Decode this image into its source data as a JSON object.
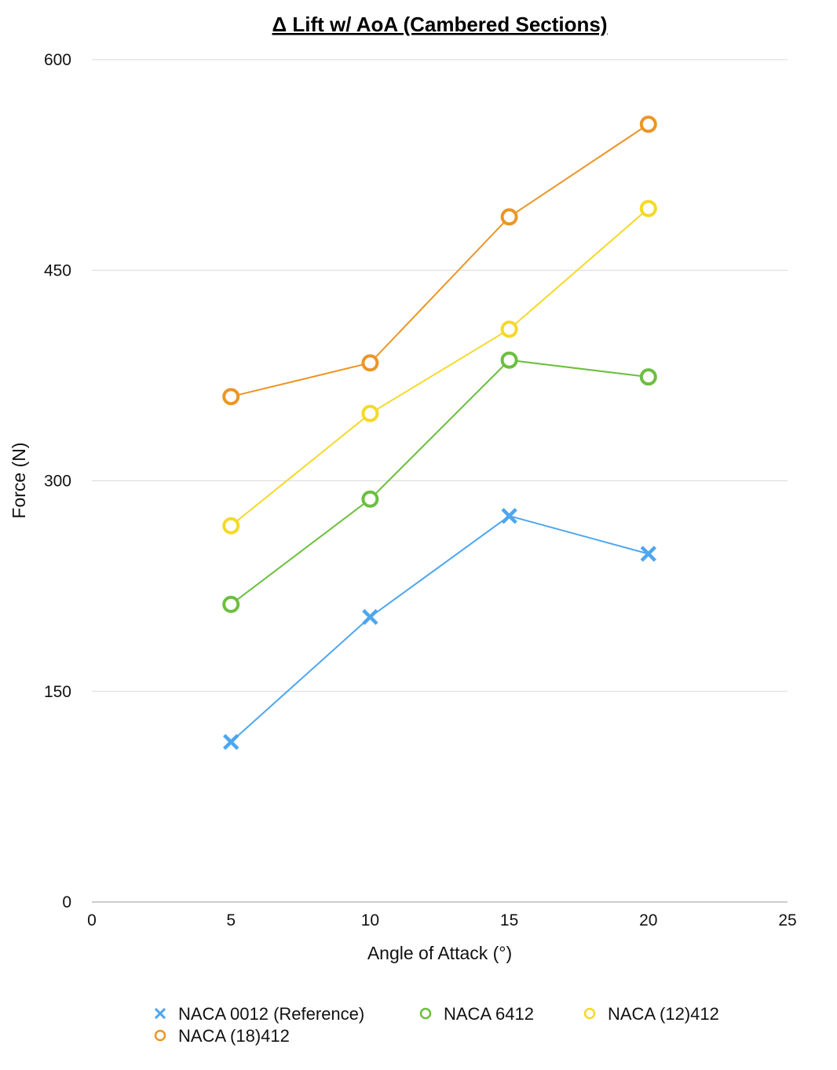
{
  "chart_data": {
    "type": "line",
    "title": "Δ Lift w/ AoA (Cambered Sections)",
    "xlabel": "Angle of Attack (°)",
    "ylabel": "Force (N)",
    "xlim": [
      0,
      25
    ],
    "ylim": [
      0,
      600
    ],
    "xticks": [
      0,
      5,
      10,
      15,
      20,
      25
    ],
    "yticks": [
      0,
      150,
      300,
      450,
      600
    ],
    "grid": "horizontal",
    "legend_position": "bottom",
    "x": [
      5,
      10,
      15,
      20
    ],
    "series": [
      {
        "name": "NACA 0012 (Reference)",
        "values": [
          114,
          203,
          275,
          248
        ],
        "marker": "x",
        "color": "#4da6f0"
      },
      {
        "name": "NACA 6412",
        "values": [
          212,
          287,
          386,
          374
        ],
        "marker": "circle",
        "color": "#6cbf3f"
      },
      {
        "name": "NACA (12)412",
        "values": [
          268,
          348,
          408,
          494
        ],
        "marker": "circle",
        "color": "#f5d927"
      },
      {
        "name": "NACA (18)412",
        "values": [
          360,
          384,
          488,
          554
        ],
        "marker": "circle",
        "color": "#ec9526"
      }
    ]
  }
}
